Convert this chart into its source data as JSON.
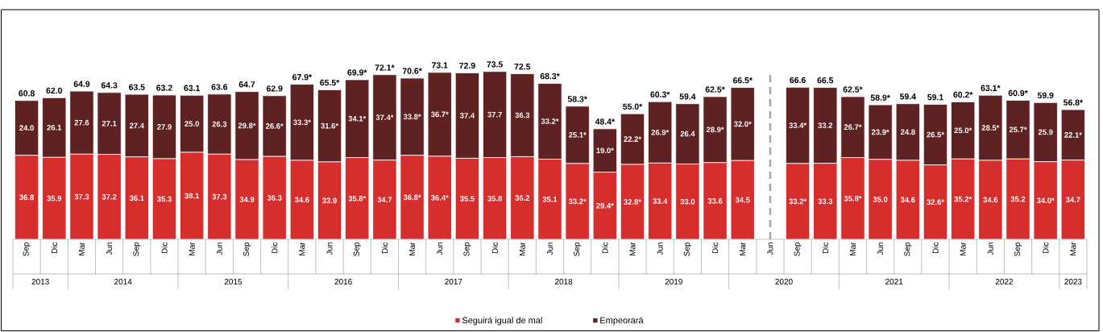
{
  "chart_data": {
    "type": "bar",
    "stacked": true,
    "tick_labels": "x",
    "legend": "bottom",
    "categories": [
      "Sep",
      "Dic",
      "Mar",
      "Jun",
      "Sep",
      "Dic",
      "Mar",
      "Jun",
      "Sep",
      "Dic",
      "Mar",
      "Jun",
      "Sep",
      "Dic",
      "Mar",
      "Jun",
      "Sep",
      "Dic",
      "Mar",
      "Jun",
      "Sep",
      "Dic",
      "Mar",
      "Jun",
      "Sep",
      "Dic",
      "Mar",
      "Jun",
      "Sep",
      "Dic",
      "Mar",
      "Jun",
      "Sep",
      "Dic",
      "Mar",
      "Jun",
      "Sep",
      "Dic",
      "Mar"
    ],
    "series": [
      {
        "name": "Seguirá igual de mal",
        "color": "#d62d2d",
        "values": [
          36.8,
          35.9,
          37.3,
          37.2,
          36.1,
          35.3,
          38.1,
          37.3,
          34.9,
          36.3,
          34.6,
          33.9,
          35.8,
          34.7,
          36.8,
          36.4,
          35.5,
          35.8,
          36.2,
          35.1,
          33.2,
          29.4,
          32.8,
          33.4,
          33.0,
          33.6,
          34.5,
          null,
          33.2,
          33.3,
          35.8,
          35.0,
          34.6,
          32.6,
          35.2,
          34.6,
          35.2,
          34.0,
          34.7
        ],
        "value_labels": [
          "36.8",
          "35.9",
          "37.3",
          "37.2",
          "36.1",
          "35.3",
          "38.1",
          "37.3",
          "34.9",
          "36.3",
          "34.6",
          "33.9",
          "35.8*",
          "34.7",
          "36.8*",
          "36.4*",
          "35.5",
          "35.8",
          "36.2",
          "35.1",
          "33.2*",
          "29.4*",
          "32.8*",
          "33.4",
          "33.0",
          "33.6",
          "34.5",
          null,
          "33.2*",
          "33.3",
          "35.8*",
          "35.0",
          "34.6",
          "32.6*",
          "35.2*",
          "34.6",
          "35.2",
          "34.0*",
          "34.7"
        ]
      },
      {
        "name": "Empeorará",
        "color": "#5e2222",
        "values": [
          24.0,
          26.1,
          27.6,
          27.1,
          27.4,
          27.9,
          25.0,
          26.3,
          29.8,
          26.6,
          33.3,
          31.6,
          34.1,
          37.4,
          33.8,
          36.7,
          37.4,
          37.7,
          36.3,
          33.2,
          25.1,
          19.0,
          22.2,
          26.9,
          26.4,
          28.9,
          32.0,
          null,
          33.4,
          33.2,
          26.7,
          23.9,
          24.8,
          26.5,
          25.0,
          28.5,
          25.7,
          25.9,
          22.1
        ],
        "value_labels": [
          "24.0",
          "26.1",
          "27.6",
          "27.1",
          "27.4",
          "27.9",
          "25.0",
          "26.3",
          "29.8*",
          "26.6*",
          "33.3*",
          "31.6*",
          "34.1*",
          "37.4*",
          "33.8*",
          "36.7*",
          "37.4",
          "37.7",
          "36.3",
          "33.2*",
          "25.1*",
          "19.0*",
          "22.2*",
          "26.9*",
          "26.4",
          "28.9*",
          "32.0*",
          null,
          "33.4*",
          "33.2",
          "26.7*",
          "23.9*",
          "24.8",
          "26.5*",
          "25.0*",
          "28.5*",
          "25.7*",
          "25.9",
          "22.1*"
        ]
      }
    ],
    "totals": [
      "60.8",
      "62.0",
      "64.9",
      "64.3",
      "63.5",
      "63.2",
      "63.1",
      "63.6",
      "64.7",
      "62.9",
      "67.9*",
      "65.5*",
      "69.9*",
      "72.1*",
      "70.6*",
      "73.1",
      "72.9",
      "73.5",
      "72.5",
      "68.3*",
      "58.3*",
      "48.4*",
      "55.0*",
      "60.3*",
      "59.4",
      "62.5*",
      "66.5*",
      null,
      "66.6",
      "66.5",
      "62.5*",
      "58.9*",
      "59.4",
      "59.1",
      "60.2*",
      "63.1*",
      "60.9*",
      "59.9",
      "56.8*"
    ],
    "annotations": [
      "2013",
      "2014",
      "2015",
      "2016",
      "2017",
      "2018",
      "2019",
      "2020",
      "2021",
      "2022",
      "2023"
    ]
  }
}
